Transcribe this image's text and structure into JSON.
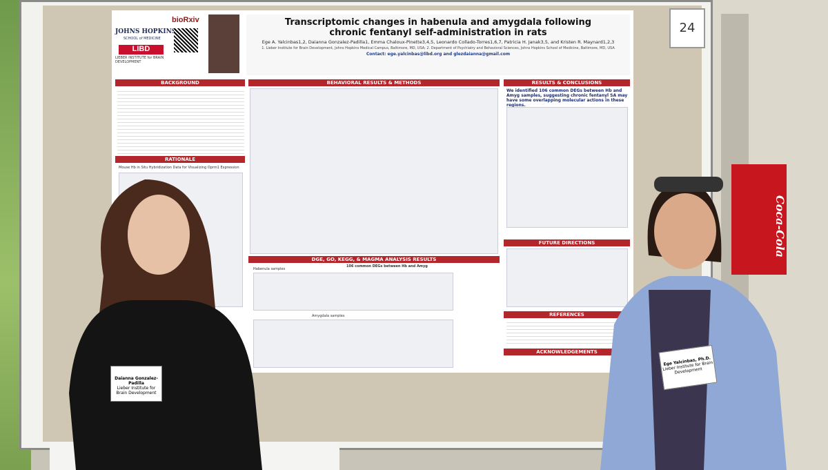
{
  "board_number": "24",
  "poster": {
    "logos": {
      "jhu": "JOHNS HOPKINS",
      "jhu_sub": "SCHOOL of MEDICINE",
      "libd": "LIBD",
      "libd_sub": "LIEBER INSTITUTE for BRAIN DEVELOPMENT",
      "biorxiv": "bioRxiv"
    },
    "title": "Transcriptomic changes in habenula and amygdala following chronic fentanyl self-administration in rats",
    "authors": "Ege A. Yalcinbas1,2, Daianna Gonzalez-Padilla1, Emma Chaloux-Pinette3,4,5, Leonardo Collado-Torres1,6,7, Patricia H. Janak3,5, and Kristen R. Maynard1,2,3",
    "affiliations": "1. Lieber Institute for Brain Development, Johns Hopkins Medical Campus, Baltimore, MD, USA; 2. Department of Psychiatry and Behavioral Sciences, Johns Hopkins School of Medicine, Baltimore, MD, USA",
    "contact": "Contact: ege.yalcinbas@libd.org and glezdaianna@gmail.com",
    "sections": {
      "background": "BACKGROUND",
      "rationale": "RATIONALE",
      "behavioral": "BEHAVIORAL RESULTS & METHODS",
      "dge": "DGE, GO, KEGG, & MAGMA ANALYSIS RESULTS",
      "results": "RESULTS & CONCLUSIONS",
      "future": "FUTURE DIRECTIONS",
      "references": "REFERENCES",
      "acknowledgements": "ACKNOWLEDGEMENTS"
    },
    "rationale_figure": "Mouse Hb in Situ Hybridization Data for Visualizing Oprm1 Expression",
    "results_text": "We identified 106 common DEGs between Hb and Amyg samples, suggesting chronic fentanyl SA may have some overlapping molecular actions in these regions.",
    "dge_heading": "106 common DEGs between Hb and Amyg",
    "habenula_samples": "Habenula samples",
    "amygdala_samples": "Amygdala samples"
  },
  "badges": [
    {
      "name": "Daianna Gonzalez-Padilla",
      "org": "Lieber Institute for Brain Development"
    },
    {
      "name": "Ege Yalcinbas, Ph.D.",
      "org": "Lieber Institute for Brain Development"
    }
  ],
  "vending": "Coca-Cola"
}
